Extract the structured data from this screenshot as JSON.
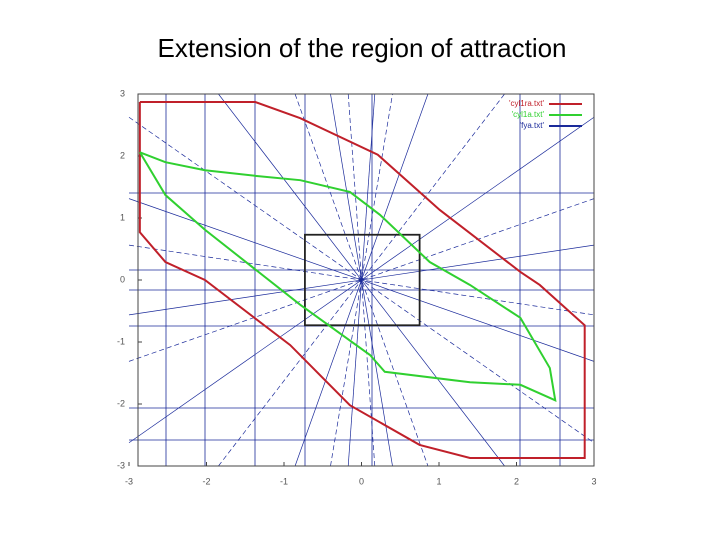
{
  "chart_data": {
    "type": "line",
    "title": "Extension of the region of attraction",
    "xlim": [
      -3,
      3
    ],
    "ylim": [
      -3,
      3
    ],
    "xticks": [
      -3,
      -2,
      -1,
      0,
      1,
      2,
      3
    ],
    "yticks": [
      -3,
      -2,
      -1,
      0,
      1,
      2,
      3
    ],
    "legend": "upper right",
    "series": [
      {
        "name": "'cyl1ra.txt'",
        "color": "#c0202a",
        "x": [
          -2.86,
          -1.37,
          -0.79,
          0.21,
          1.01,
          2.05,
          2.3,
          2.88,
          2.88,
          1.4,
          0.75,
          -0.15,
          -0.92,
          -2.02,
          -2.53,
          -2.86,
          -2.86
        ],
        "values": [
          2.87,
          2.87,
          2.61,
          2.02,
          1.13,
          0.13,
          -0.08,
          -0.73,
          -2.87,
          -2.87,
          -2.66,
          -2.02,
          -1.05,
          0,
          0.29,
          0.77,
          2.87
        ]
      },
      {
        "name": "'cyl1a.txt'",
        "color": "#30d030",
        "x": [
          -2.86,
          -2.53,
          -2.02,
          -1.37,
          -0.79,
          -0.15,
          0.24,
          0.88,
          1.4,
          2.05,
          2.43,
          2.5,
          2.05,
          1.4,
          0.3,
          0.11,
          -0.79,
          -2.02,
          -2.53,
          -2.86
        ],
        "values": [
          2.06,
          1.9,
          1.77,
          1.68,
          1.61,
          1.42,
          1.05,
          0.29,
          -0.08,
          -0.61,
          -1.42,
          -1.94,
          -1.69,
          -1.65,
          -1.48,
          -1.21,
          -0.4,
          0.81,
          1.37,
          2.06
        ]
      },
      {
        "name": "'fya.txt'",
        "color": "#1a2a9a",
        "x": [],
        "values": []
      }
    ],
    "box": {
      "x": [
        -0.73,
        0.75
      ],
      "y": [
        -0.73,
        0.73
      ],
      "color": "#222222"
    }
  }
}
